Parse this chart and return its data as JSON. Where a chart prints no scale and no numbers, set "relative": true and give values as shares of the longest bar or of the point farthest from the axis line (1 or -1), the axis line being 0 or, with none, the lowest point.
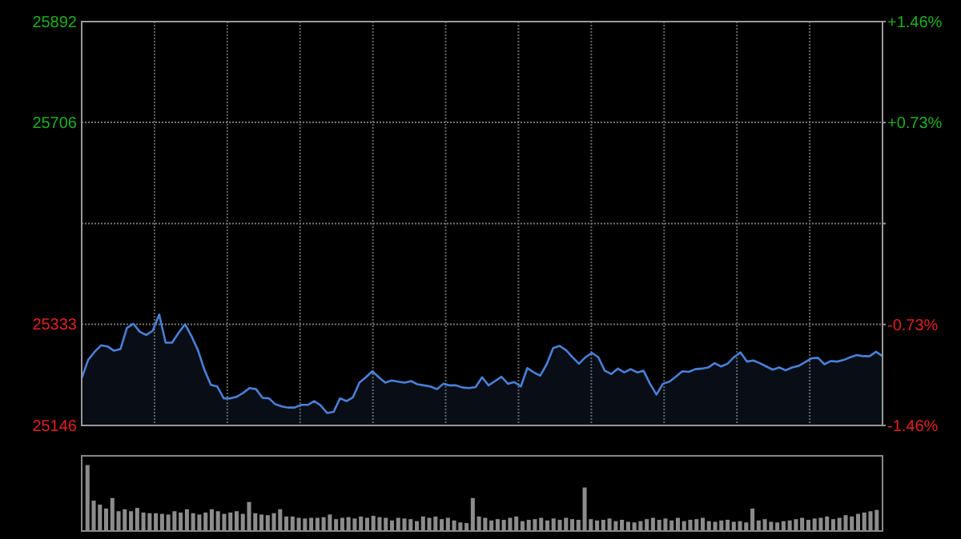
{
  "chart_data": [
    {
      "type": "area",
      "categories": [
        null,
        null,
        null,
        null,
        null,
        null,
        null,
        null,
        null,
        null,
        null,
        null,
        null,
        null,
        null,
        null,
        null,
        null,
        null,
        null,
        null,
        null,
        null,
        null,
        null,
        null,
        null,
        null,
        null,
        null,
        null,
        null,
        null,
        null,
        null,
        null,
        null,
        null,
        null,
        null,
        null,
        null,
        null,
        null,
        null,
        null,
        null,
        null,
        null,
        null,
        null,
        null,
        null,
        null,
        null,
        null,
        null,
        null,
        null,
        null,
        null,
        null,
        null,
        null,
        null,
        null,
        null,
        null,
        null,
        null,
        null,
        null,
        null,
        null,
        null,
        null,
        null,
        null,
        null,
        null,
        null,
        null,
        null,
        null,
        null,
        null,
        null,
        null,
        null,
        null,
        null,
        null,
        null,
        null,
        null,
        null,
        null,
        null,
        null,
        null,
        null,
        null,
        null,
        null,
        null,
        null,
        null,
        null,
        null,
        null,
        null,
        null,
        null,
        null,
        null,
        null,
        null,
        null,
        null,
        null,
        null,
        null,
        null,
        null,
        null
      ],
      "ylim": [
        25146,
        25892
      ],
      "yticks": [
        25892,
        25706,
        {
          "value": 25519,
          "label": null
        },
        25333,
        25146
      ],
      "y2lim": [
        -1.46,
        1.46
      ],
      "y2ticks": [
        {
          "value": 1.46,
          "label": "+1.46%"
        },
        {
          "value": 0.73,
          "label": "+0.73%"
        },
        {
          "value": 0,
          "label": null
        },
        {
          "value": -0.73,
          "label": "-0.73%"
        },
        {
          "value": -1.46,
          "label": "-1.46%"
        }
      ],
      "grid": true,
      "tick_labels": "y",
      "series": [
        {
          "color": "#4a80d6",
          "values": [
            25233,
            25267,
            25282,
            25294,
            25292,
            25284,
            25287,
            25326,
            25334,
            25319,
            25313,
            25321,
            25351,
            25299,
            25299,
            25317,
            25333,
            25311,
            25285,
            25249,
            25221,
            25218,
            25196,
            25196,
            25199,
            25206,
            25215,
            25213,
            25197,
            25196,
            25185,
            25181,
            25179,
            25179,
            25184,
            25184,
            25191,
            25183,
            25169,
            25171,
            25196,
            25191,
            25198,
            25225,
            25235,
            25246,
            25235,
            25225,
            25229,
            25227,
            25225,
            25228,
            25222,
            25220,
            25218,
            25213,
            25223,
            25220,
            25220,
            25216,
            25215,
            25217,
            25235,
            25220,
            25228,
            25236,
            25223,
            25226,
            25218,
            25252,
            25244,
            25238,
            25259,
            25289,
            25293,
            25285,
            25272,
            25260,
            25272,
            25280,
            25272,
            25247,
            25241,
            25251,
            25244,
            25250,
            25244,
            25247,
            25223,
            25203,
            25223,
            25227,
            25236,
            25246,
            25245,
            25250,
            25251,
            25253,
            25261,
            25255,
            25260,
            25272,
            25281,
            25264,
            25266,
            25261,
            25255,
            25249,
            25253,
            25248,
            25253,
            25256,
            25263,
            25270,
            25271,
            25259,
            25265,
            25264,
            25267,
            25272,
            25276,
            25274,
            25274,
            25282,
            25274
          ]
        }
      ]
    },
    {
      "type": "bar",
      "relative": true,
      "categories": [
        null,
        null,
        null,
        null,
        null,
        null,
        null,
        null,
        null,
        null,
        null,
        null,
        null,
        null,
        null,
        null,
        null,
        null,
        null,
        null,
        null,
        null,
        null,
        null,
        null,
        null,
        null,
        null,
        null,
        null,
        null,
        null,
        null,
        null,
        null,
        null,
        null,
        null,
        null,
        null,
        null,
        null,
        null,
        null,
        null,
        null,
        null,
        null,
        null,
        null,
        null,
        null,
        null,
        null,
        null,
        null,
        null,
        null,
        null,
        null,
        null,
        null,
        null,
        null,
        null,
        null,
        null,
        null,
        null,
        null,
        null,
        null,
        null,
        null,
        null,
        null,
        null,
        null,
        null,
        null,
        null,
        null,
        null,
        null,
        null,
        null,
        null,
        null,
        null,
        null,
        null,
        null,
        null,
        null,
        null,
        null,
        null,
        null,
        null,
        null,
        null,
        null,
        null,
        null,
        null,
        null,
        null,
        null,
        null,
        null,
        null,
        null,
        null,
        null,
        null,
        null,
        null,
        null,
        null,
        null,
        null,
        null,
        null,
        null,
        null,
        null,
        null,
        null
      ],
      "color": "#8c8c8c",
      "values": [
        1.0,
        0.46,
        0.4,
        0.34,
        0.5,
        0.3,
        0.33,
        0.3,
        0.35,
        0.28,
        0.27,
        0.27,
        0.26,
        0.25,
        0.3,
        0.28,
        0.33,
        0.27,
        0.25,
        0.28,
        0.33,
        0.3,
        0.26,
        0.28,
        0.3,
        0.26,
        0.44,
        0.27,
        0.25,
        0.24,
        0.27,
        0.33,
        0.22,
        0.22,
        0.2,
        0.19,
        0.2,
        0.2,
        0.21,
        0.25,
        0.18,
        0.2,
        0.21,
        0.19,
        0.22,
        0.2,
        0.23,
        0.21,
        0.2,
        0.16,
        0.2,
        0.19,
        0.18,
        0.15,
        0.22,
        0.2,
        0.22,
        0.18,
        0.2,
        0.16,
        0.13,
        0.12,
        0.5,
        0.22,
        0.2,
        0.16,
        0.18,
        0.17,
        0.2,
        0.22,
        0.15,
        0.17,
        0.18,
        0.2,
        0.16,
        0.19,
        0.17,
        0.2,
        0.18,
        0.17,
        0.66,
        0.18,
        0.16,
        0.17,
        0.19,
        0.15,
        0.17,
        0.14,
        0.13,
        0.15,
        0.18,
        0.2,
        0.17,
        0.19,
        0.16,
        0.2,
        0.15,
        0.17,
        0.18,
        0.2,
        0.15,
        0.14,
        0.16,
        0.17,
        0.14,
        0.15,
        0.13,
        0.34,
        0.16,
        0.18,
        0.14,
        0.13,
        0.15,
        0.16,
        0.18,
        0.2,
        0.17,
        0.19,
        0.2,
        0.22,
        0.18,
        0.2,
        0.24,
        0.22,
        0.26,
        0.28,
        0.3,
        0.32
      ]
    }
  ]
}
